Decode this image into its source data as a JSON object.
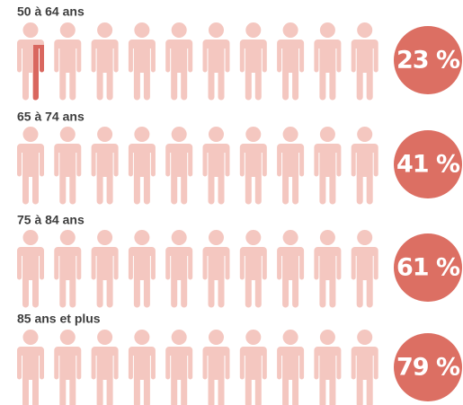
{
  "chart_data": {
    "type": "pictogram",
    "categories": [
      "50 à 64 ans",
      "65 à 74 ans",
      "75 à 84 ans",
      "85 ans et plus"
    ],
    "values": [
      23,
      41,
      61,
      79
    ],
    "value_labels": [
      "23 %",
      "41 %",
      "61 %",
      "79 %"
    ],
    "color": "#d9675f",
    "empty_color": "#f4c7c0",
    "badge_color": "#dc6f63"
  }
}
